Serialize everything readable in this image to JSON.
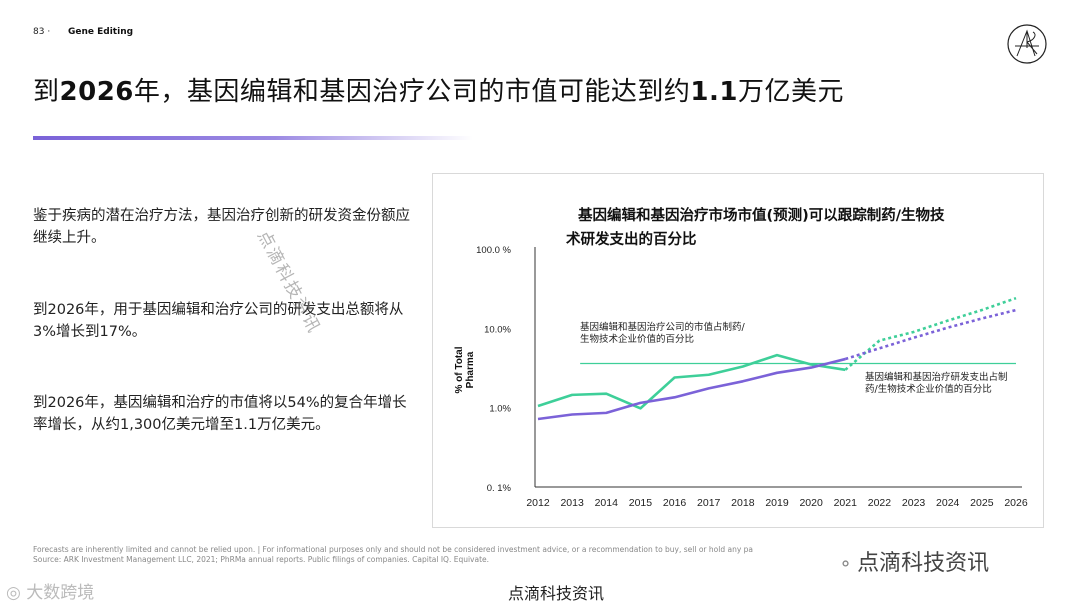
{
  "header": {
    "page_number": "83 ·",
    "section": "Gene Editing"
  },
  "title": {
    "prefix": "到",
    "year": "2026",
    "mid": "年，基因编辑和基因治疗公司的市值可能达到约",
    "value": "1.1",
    "suffix": "万亿美元"
  },
  "paragraphs": [
    "鉴于疾病的潜在治疗方法，基因治疗创新的研发资金份额应继续上升。",
    "到2026年，用于基因编辑和治疗公司的研发支出总额将从3%增长到17%。",
    "到2026年，基因编辑和治疗的市值将以54%的复合年增长率增长，从约1,300亿美元增至1.1万亿美元。"
  ],
  "footer": {
    "line1": "Forecasts are inherently limited and cannot be relied upon. | For informational purposes only and should not be considered investment advice, or a recommendation to buy, sell or hold any pa",
    "line2": "Source: ARK Investment Management LLC, 2021; PhRMa annual reports. Public filings of companies. Capital IQ. Equivate."
  },
  "watermarks": {
    "diagonal": "点滴科技资讯",
    "right": "点滴科技资讯",
    "left": "大数跨境",
    "bottom": "点滴科技资讯"
  },
  "chart_data": {
    "type": "line",
    "title": "基因编辑和基因治疗市场市值(预测)可以跟踪制药/生物技术研发支出的百分比",
    "title_lines": [
      "基因编辑和基因治疗市场市值(预测)可以跟踪制药/生物技",
      "术研发支出的百分比"
    ],
    "ylabel_lines": [
      "% of Total",
      "Pharma"
    ],
    "yscale": "log",
    "ylim": [
      0.1,
      100
    ],
    "yticks": [
      {
        "value": 100,
        "label": "100.0 %"
      },
      {
        "value": 10,
        "label": "10.0%"
      },
      {
        "value": 1,
        "label": "1.0%"
      },
      {
        "value": 0.1,
        "label": "0. 1%"
      }
    ],
    "categories": [
      "2012",
      "2013",
      "2014",
      "2015",
      "2016",
      "2017",
      "2018",
      "2019",
      "2020",
      "2021",
      "2022",
      "2023",
      "2024",
      "2025",
      "2026"
    ],
    "forecast_start": "2021",
    "series": [
      {
        "name": "基因编辑和基因治疗公司的市值占制药/生物技术企业价值的百分比",
        "label_lines": [
          "基因编辑和基因治疗公司的市值占制药/",
          "生物技术企业价值的百分比"
        ],
        "color": "#3ecf99",
        "values": [
          1.05,
          1.45,
          1.5,
          0.98,
          2.4,
          2.6,
          3.3,
          4.6,
          3.5,
          3.0,
          7.0,
          9.0,
          12.5,
          17.0,
          24.0
        ]
      },
      {
        "name": "基因编辑和基因治疗研发支出占制药/生物技术企业价值的百分比",
        "label_lines": [
          "基因编辑和基因治疗研发支出占制",
          "药/生物技术企业价值的百分比"
        ],
        "color": "#7b62d8",
        "values": [
          0.72,
          0.82,
          0.86,
          1.15,
          1.35,
          1.75,
          2.15,
          2.75,
          3.2,
          4.1,
          5.6,
          7.6,
          10.2,
          13.3,
          17.0
        ]
      }
    ],
    "reference_line": {
      "value": 3.6,
      "color": "#3ecf99"
    }
  }
}
